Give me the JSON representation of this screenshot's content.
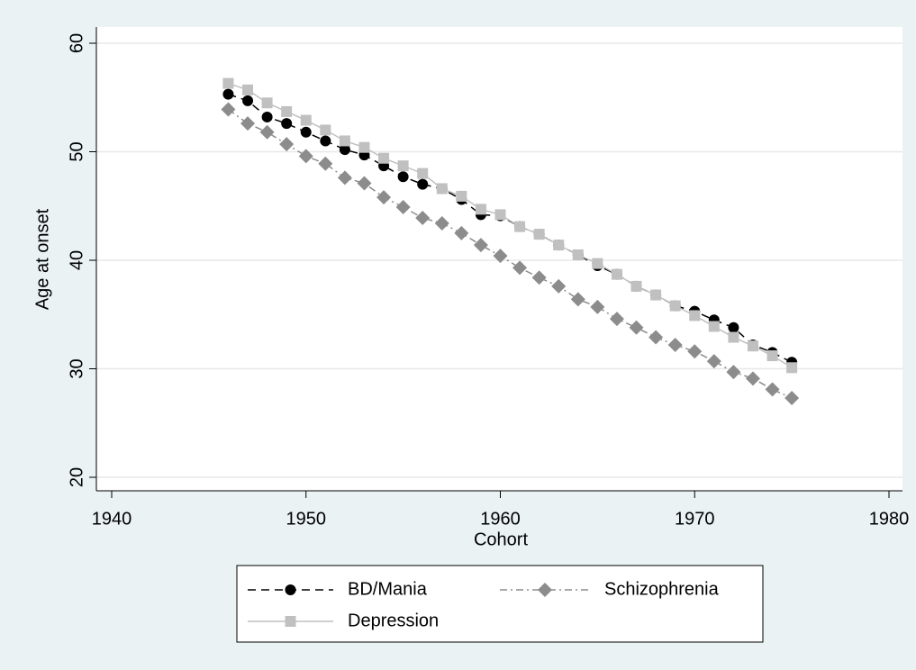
{
  "chart_data": {
    "type": "line",
    "x_label": "Cohort",
    "y_label": "Age at onset",
    "x": [
      1946,
      1947,
      1948,
      1949,
      1950,
      1951,
      1952,
      1953,
      1954,
      1955,
      1956,
      1957,
      1958,
      1959,
      1960,
      1961,
      1962,
      1963,
      1964,
      1965,
      1966,
      1967,
      1968,
      1969,
      1970,
      1971,
      1972,
      1973,
      1974,
      1975
    ],
    "series": [
      {
        "name": "BD/Mania",
        "color": "#000000",
        "marker": "circle",
        "dash": "dash",
        "values": [
          55.3,
          54.7,
          53.2,
          52.6,
          51.8,
          51.0,
          50.2,
          49.7,
          48.7,
          47.7,
          47.0,
          46.6,
          45.6,
          44.2,
          44.1,
          43.1,
          42.4,
          41.4,
          40.5,
          39.5,
          38.7,
          37.6,
          36.8,
          35.8,
          35.3,
          34.5,
          33.8,
          32.2,
          31.5,
          30.6
        ]
      },
      {
        "name": "Schizophrenia",
        "color": "#8c8c8c",
        "marker": "diamond",
        "dash": "dashdot",
        "values": [
          53.9,
          52.6,
          51.8,
          50.7,
          49.6,
          48.9,
          47.6,
          47.1,
          45.8,
          44.9,
          43.9,
          43.4,
          42.5,
          41.4,
          40.4,
          39.3,
          38.4,
          37.6,
          36.4,
          35.7,
          34.6,
          33.8,
          32.9,
          32.2,
          31.6,
          30.7,
          29.7,
          29.1,
          28.1,
          27.3
        ]
      },
      {
        "name": "Depression",
        "color": "#c0c0c0",
        "marker": "square",
        "dash": "solid",
        "values": [
          56.3,
          55.7,
          54.5,
          53.7,
          52.9,
          52.0,
          51.0,
          50.4,
          49.4,
          48.7,
          48.0,
          46.6,
          45.9,
          44.7,
          44.2,
          43.1,
          42.4,
          41.4,
          40.5,
          39.7,
          38.7,
          37.6,
          36.8,
          35.8,
          34.9,
          33.9,
          32.9,
          32.1,
          31.2,
          30.1
        ]
      }
    ],
    "xlim": [
      1940,
      1980
    ],
    "xticks": [
      1940,
      1950,
      1960,
      1970,
      1980
    ],
    "ylim": [
      20,
      60
    ],
    "yticks": [
      20,
      30,
      40,
      50,
      60
    ],
    "grid": true,
    "legend": "bottom"
  }
}
